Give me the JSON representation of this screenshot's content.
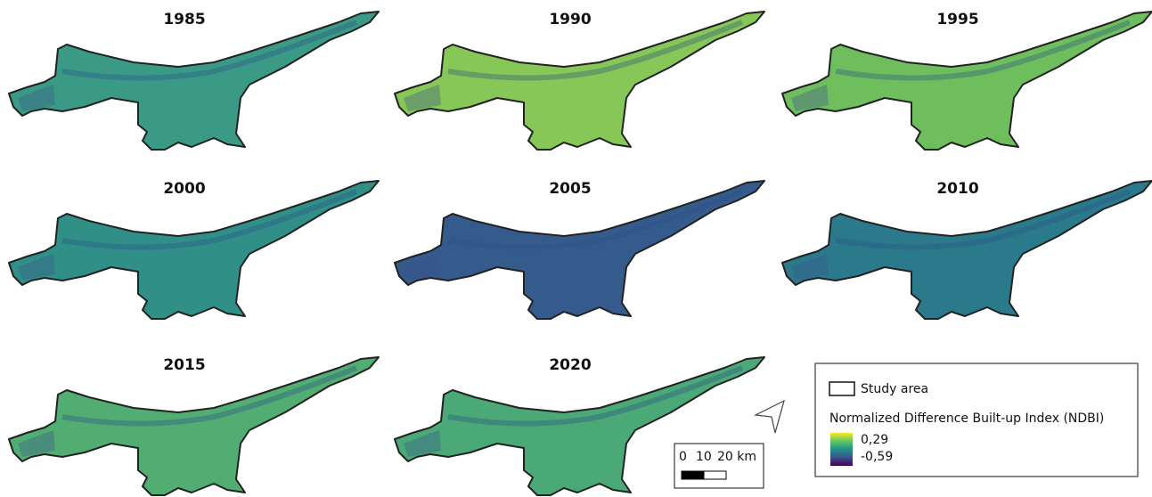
{
  "panels": [
    {
      "title": "1985",
      "color": "#3b9a86"
    },
    {
      "title": "1990",
      "color": "#86c757"
    },
    {
      "title": "1995",
      "color": "#6fbe5e"
    },
    {
      "title": "2000",
      "color": "#309088"
    },
    {
      "title": "2005",
      "color": "#355a8c"
    },
    {
      "title": "2010",
      "color": "#2b7a8c"
    },
    {
      "title": "2015",
      "color": "#52ad73"
    },
    {
      "title": "2020",
      "color": "#4ba877"
    }
  ],
  "legend": {
    "study_area": "Study area",
    "index_title": "Normalized Difference Built-up Index (NDBI)",
    "max_label": "0,29",
    "min_label": "-0,59"
  },
  "scale_bar": {
    "labels": [
      "0",
      "10",
      "20 km"
    ]
  }
}
